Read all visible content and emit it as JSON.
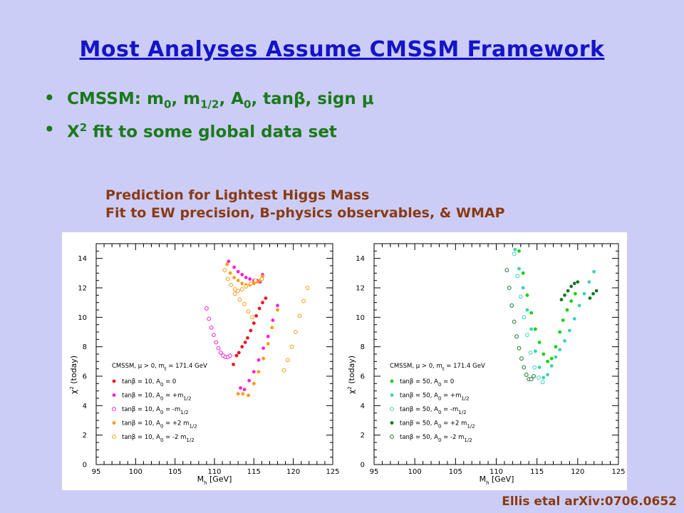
{
  "slide": {
    "title": "Most Analyses Assume CMSSM Framework",
    "bullets": [
      {
        "pre": "CMSSM:  m",
        "s1": "0",
        "t1": ", m",
        "s2": "1/2",
        "t2": ", A",
        "s3": "0",
        "t3": ", tanβ, sign μ"
      },
      {
        "pre": "Χ",
        "sup": "2",
        "post": " fit to some global data set"
      }
    ],
    "caption_line1": "Prediction for Lightest Higgs Mass",
    "caption_line2": "Fit to EW precision, B-physics observables, & WMAP",
    "citation": "Ellis etal arXiv:0706.0652",
    "bullet_glyph": "•"
  },
  "chart_data": [
    {
      "type": "scatter",
      "xlabel": "M_h [GeV]",
      "ylabel": "χ² (today)",
      "xlim": [
        95,
        125
      ],
      "ylim": [
        0,
        15
      ],
      "x_ticks": [
        "95",
        "100",
        "105",
        "110",
        "115",
        "120",
        "125"
      ],
      "y_ticks": [
        "0",
        "2",
        "4",
        "6",
        "8",
        "10",
        "12",
        "14"
      ],
      "legend_header": "CMSSM, μ > 0, m_t = 171.4 GeV",
      "legend_position": "bottom-left",
      "series": [
        {
          "name": "tanβ = 10, A0 = 0",
          "color": "#e8141e",
          "marker": "filled",
          "x": [
            112.4,
            112.8,
            113.1,
            113.5,
            113.9,
            114.2,
            114.6,
            115.0,
            115.3,
            115.7,
            116.1,
            116.5
          ],
          "y": [
            6.8,
            7.4,
            7.6,
            8.0,
            8.3,
            8.6,
            9.1,
            9.6,
            10.1,
            10.6,
            11.0,
            11.3
          ]
        },
        {
          "name": "tanβ = 10, A0 = +m1/2",
          "color": "#ff1ed2",
          "marker": "filled",
          "x": [
            111.8,
            112.5,
            113.0,
            113.5,
            114.0,
            114.5,
            115.0,
            115.4,
            115.8,
            116.0,
            116.1,
            113.3,
            113.8,
            114.4,
            115.0,
            115.6,
            116.2,
            116.8,
            117.4,
            118.0
          ],
          "y": [
            13.8,
            13.4,
            13.1,
            12.9,
            12.7,
            12.6,
            12.5,
            12.5,
            12.4,
            12.6,
            12.9,
            5.2,
            5.1,
            5.7,
            6.3,
            7.1,
            7.9,
            8.7,
            9.8,
            10.8
          ]
        },
        {
          "name": "tanβ = 10, A0 = -m1/2",
          "color": "#ff1ed2",
          "marker": "open",
          "x": [
            109.0,
            109.3,
            109.6,
            109.9,
            110.2,
            110.5,
            110.8,
            111.1,
            111.4,
            111.7,
            112.0
          ],
          "y": [
            10.6,
            9.9,
            9.3,
            8.8,
            8.3,
            7.9,
            7.6,
            7.4,
            7.3,
            7.3,
            7.4
          ]
        },
        {
          "name": "tanβ = 10, A0 = +2 m1/2",
          "color": "#ff9a14",
          "marker": "filled",
          "x": [
            111.6,
            112.0,
            112.5,
            113.0,
            113.5,
            114.0,
            114.5,
            115.0,
            115.4,
            115.8,
            116.1,
            113.0,
            113.6,
            114.3,
            115.0,
            115.6,
            116.2,
            116.8,
            117.3,
            118.0
          ],
          "y": [
            13.6,
            13.0,
            12.7,
            12.5,
            12.3,
            12.2,
            12.2,
            12.3,
            12.4,
            12.5,
            12.8,
            4.8,
            4.8,
            4.7,
            5.5,
            6.3,
            7.2,
            8.2,
            9.3,
            10.5
          ]
        },
        {
          "name": "tanβ = 10, A0 = -2 m1/2",
          "color": "#ff9a14",
          "marker": "open",
          "x": [
            111.3,
            111.7,
            112.1,
            112.6,
            113.0,
            113.5,
            114.0,
            114.6,
            115.2,
            116.0,
            112.6,
            113.2,
            113.8,
            114.3,
            114.8,
            118.8,
            119.3,
            119.8,
            120.3,
            120.8,
            121.3,
            121.8
          ],
          "y": [
            13.2,
            12.6,
            12.2,
            11.9,
            11.8,
            11.9,
            12.1,
            12.3,
            12.5,
            12.6,
            11.6,
            11.2,
            10.9,
            10.4,
            10.0,
            6.4,
            7.1,
            8.0,
            9.0,
            10.1,
            11.1,
            12.0
          ]
        }
      ]
    },
    {
      "type": "scatter",
      "xlabel": "M_h [GeV]",
      "ylabel": "χ² (today)",
      "xlim": [
        95,
        125
      ],
      "ylim": [
        0,
        15
      ],
      "x_ticks": [
        "95",
        "100",
        "105",
        "110",
        "115",
        "120",
        "125"
      ],
      "y_ticks": [
        "0",
        "2",
        "4",
        "6",
        "8",
        "10",
        "12",
        "14"
      ],
      "legend_header": "CMSSM, μ > 0, m_t = 171.4 GeV",
      "legend_position": "bottom-left",
      "series": [
        {
          "name": "tanβ = 50, A0 = 0",
          "color": "#14d214",
          "marker": "filled",
          "x": [
            112.8,
            113.3,
            113.8,
            114.3,
            114.8,
            115.3,
            115.8,
            116.3,
            116.8,
            117.3,
            117.8,
            118.2,
            118.7,
            119.2,
            119.7
          ],
          "y": [
            14.5,
            13.0,
            11.5,
            10.3,
            9.2,
            8.3,
            7.5,
            7.0,
            7.2,
            8.0,
            9.0,
            9.8,
            10.5,
            11.1,
            11.6
          ]
        },
        {
          "name": "tanβ = 50, A0 = +m1/2",
          "color": "#3cd2b4",
          "marker": "filled",
          "x": [
            112.3,
            112.8,
            113.3,
            113.8,
            114.3,
            114.8,
            115.3,
            115.8,
            116.3,
            116.8,
            117.3,
            117.8,
            118.4,
            119.0,
            119.6,
            120.2,
            120.8,
            121.4,
            122.0
          ],
          "y": [
            14.6,
            13.3,
            12.0,
            10.5,
            9.2,
            7.7,
            6.6,
            5.9,
            6.1,
            6.7,
            7.3,
            7.8,
            8.4,
            9.1,
            9.9,
            10.8,
            11.6,
            12.4,
            13.1
          ]
        },
        {
          "name": "tanβ = 50, A0 = -m1/2",
          "color": "#3cd2b4",
          "marker": "open",
          "x": [
            112.2,
            112.6,
            113.0,
            113.4,
            113.8,
            114.2,
            114.7,
            115.2,
            115.7
          ],
          "y": [
            14.3,
            12.8,
            11.4,
            10.0,
            8.8,
            7.6,
            6.6,
            5.9,
            5.6
          ]
        },
        {
          "name": "tanβ = 50, A0 = +2 m1/2",
          "color": "#147828",
          "marker": "filled",
          "x": [
            118.0,
            118.4,
            118.8,
            119.2,
            119.6,
            120.0,
            121.5,
            121.9,
            122.3
          ],
          "y": [
            11.2,
            11.5,
            11.8,
            12.1,
            12.3,
            12.4,
            11.3,
            11.6,
            11.8
          ]
        },
        {
          "name": "tanβ = 50, A0 = -2 m1/2",
          "color": "#147828",
          "marker": "open",
          "x": [
            111.3,
            111.6,
            111.9,
            112.2,
            112.5,
            112.8,
            113.1,
            113.4,
            113.7,
            114.0,
            114.3,
            114.6
          ],
          "y": [
            13.2,
            12.0,
            10.8,
            9.7,
            8.7,
            7.9,
            7.2,
            6.6,
            6.1,
            5.8,
            5.8,
            6.0
          ]
        }
      ]
    }
  ]
}
